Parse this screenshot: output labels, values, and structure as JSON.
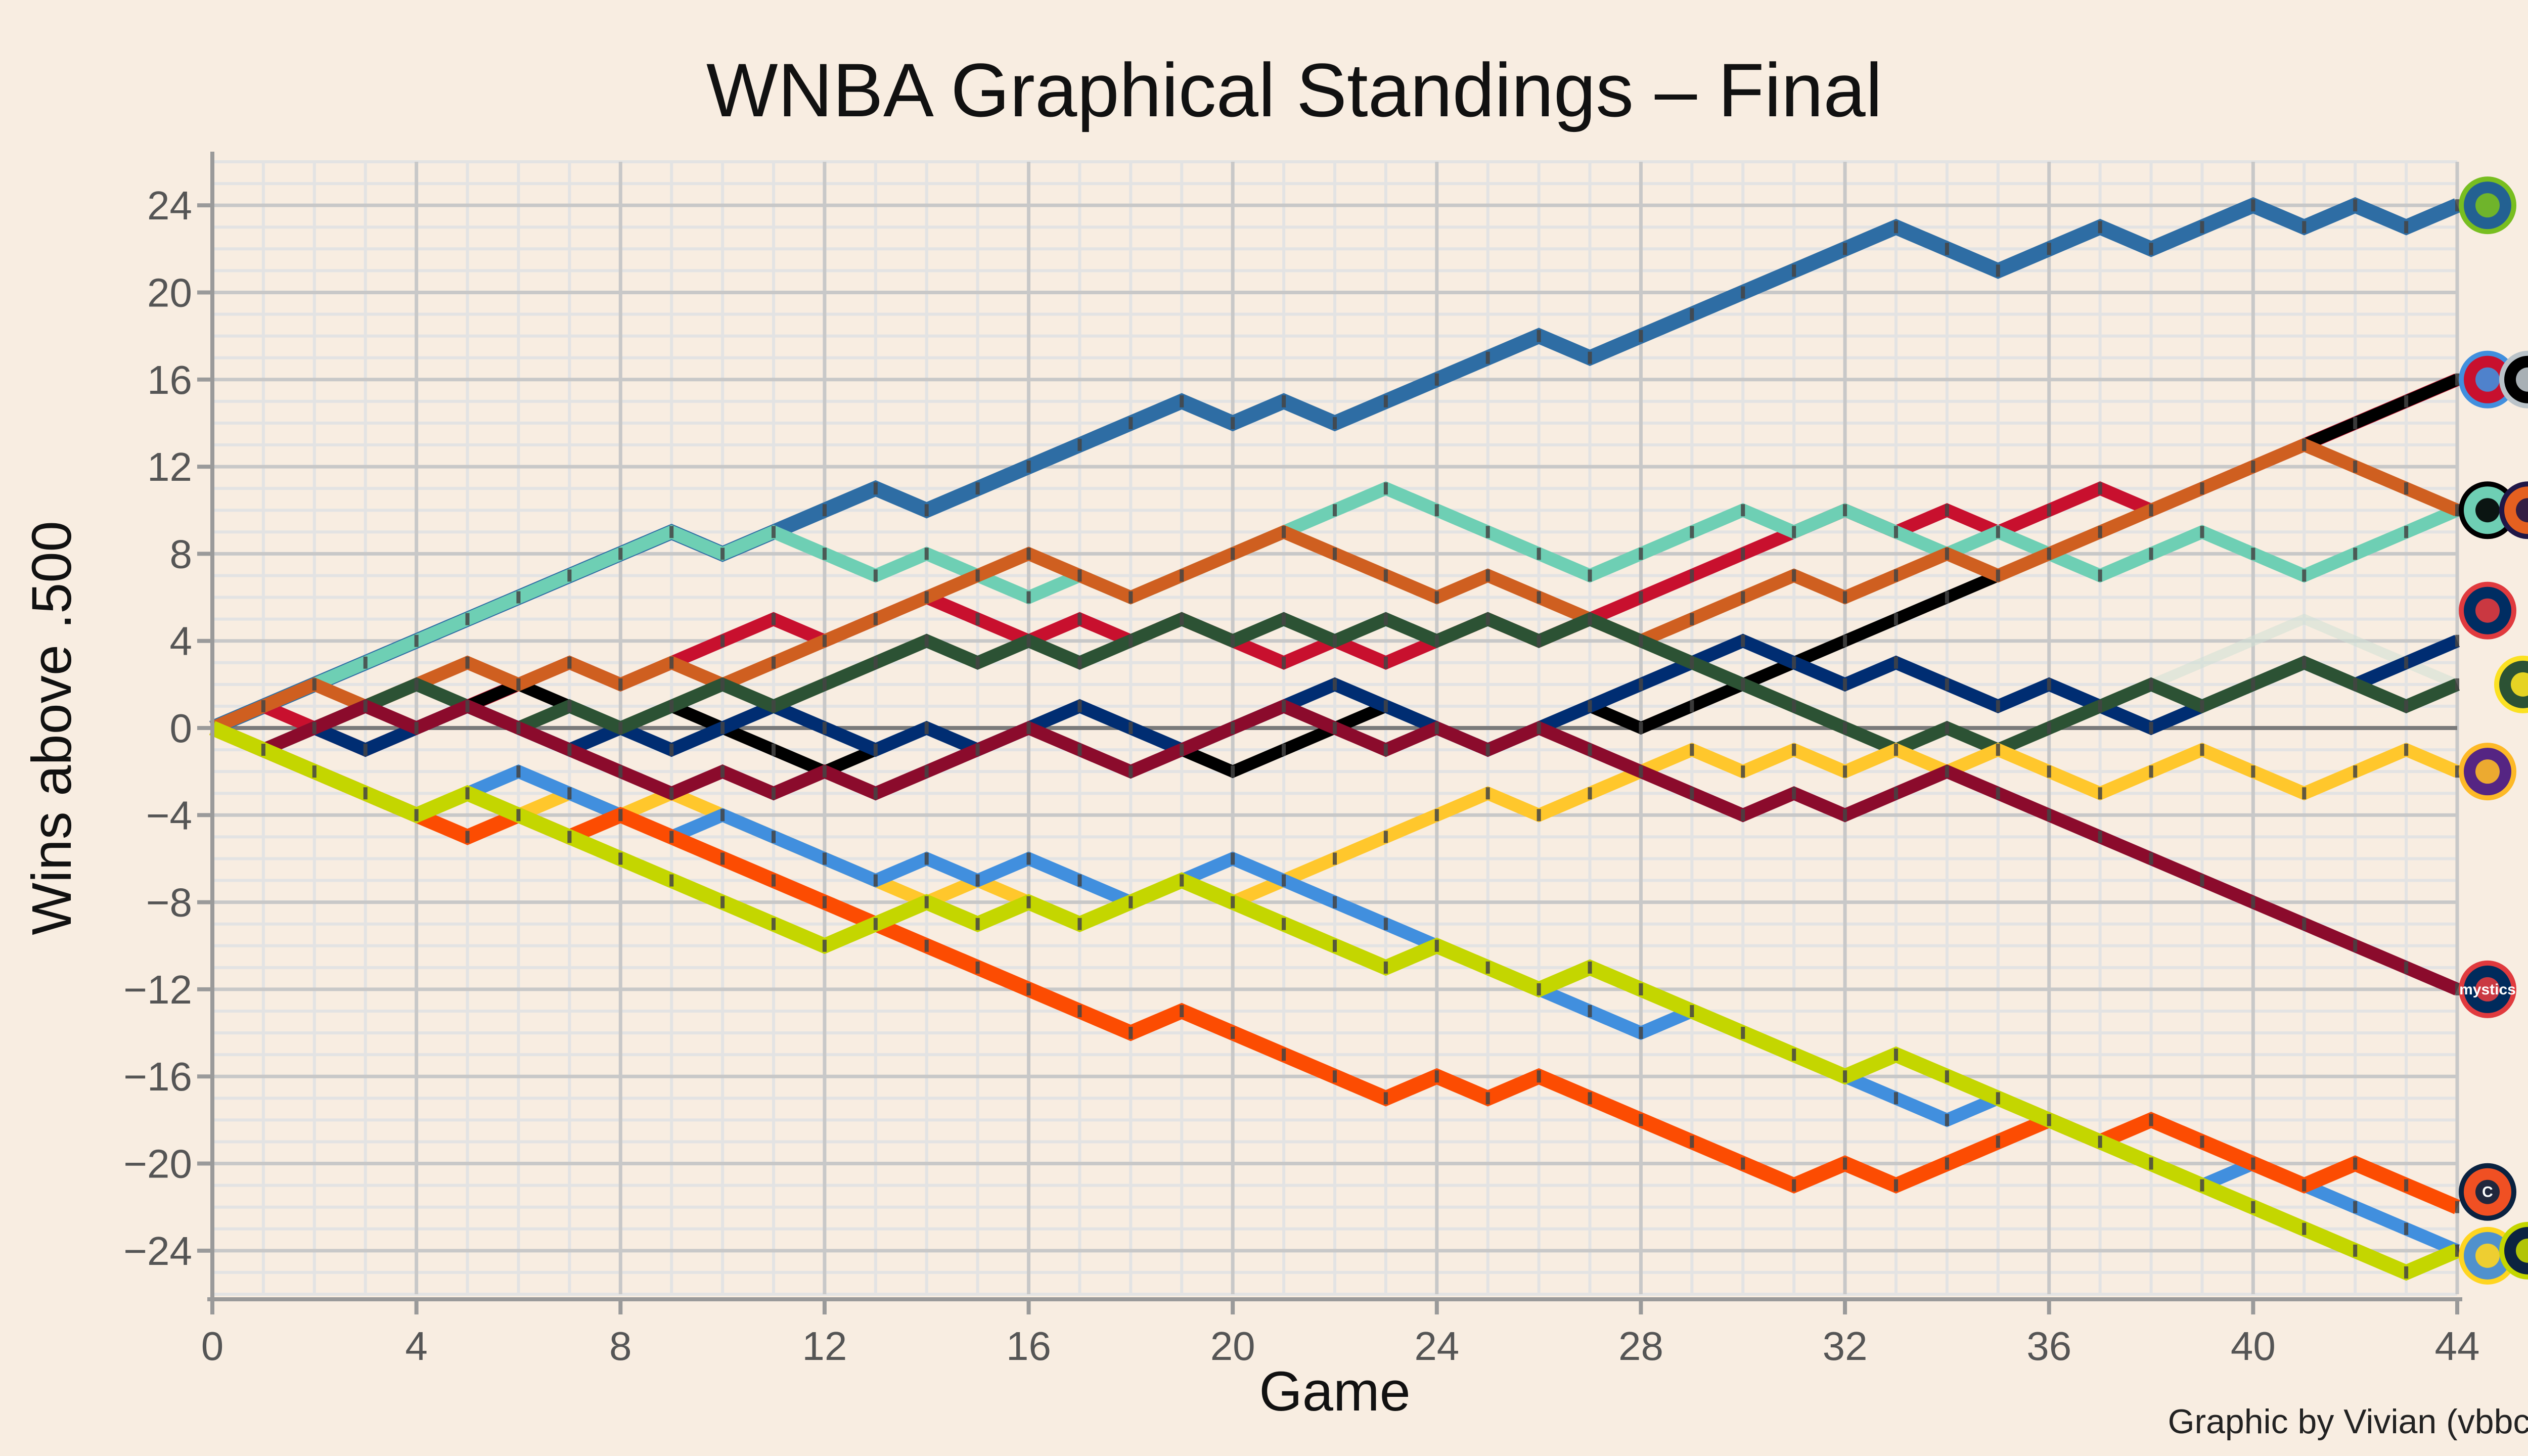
{
  "chart_data": {
    "type": "line",
    "title": "WNBA Graphical Standings – Final",
    "xlabel": "Game",
    "ylabel": "Wins above .500",
    "credit": "Graphic by Vivian (vbbcla)",
    "xlim": [
      0,
      44
    ],
    "ylim": [
      -26,
      26
    ],
    "xticks": [
      0,
      4,
      8,
      12,
      16,
      20,
      24,
      28,
      32,
      36,
      40,
      44
    ],
    "yticks": [
      24,
      20,
      16,
      12,
      8,
      4,
      0,
      -4,
      -8,
      -12,
      -16,
      -20,
      -24
    ],
    "grid": true,
    "series": [
      {
        "team": "minnesota",
        "color": "#2e6da4",
        "width": 30,
        "values": [
          0,
          1,
          2,
          3,
          4,
          5,
          6,
          7,
          8,
          9,
          8,
          9,
          10,
          11,
          10,
          11,
          12,
          13,
          14,
          15,
          14,
          15,
          14,
          15,
          16,
          17,
          18,
          17,
          18,
          19,
          20,
          21,
          22,
          23,
          22,
          21,
          22,
          23,
          22,
          23,
          24,
          23,
          24,
          23,
          24
        ]
      },
      {
        "team": "atlanta",
        "color": "#c8102e",
        "width": 26,
        "values": [
          0,
          1,
          0,
          -1,
          0,
          1,
          2,
          3,
          2,
          3,
          4,
          5,
          4,
          5,
          6,
          5,
          4,
          5,
          4,
          5,
          4,
          3,
          4,
          3,
          4,
          5,
          4,
          5,
          6,
          7,
          8,
          9,
          10,
          9,
          10,
          9,
          10,
          11,
          10,
          11,
          12,
          13,
          14,
          15,
          16
        ]
      },
      {
        "team": "las-vegas",
        "color": "#000000",
        "width": 24,
        "values": [
          0,
          -1,
          0,
          1,
          2,
          1,
          2,
          1,
          0,
          1,
          0,
          -1,
          -2,
          -1,
          0,
          -1,
          0,
          -1,
          -2,
          -1,
          -2,
          -1,
          0,
          1,
          0,
          -1,
          0,
          1,
          0,
          1,
          2,
          3,
          4,
          5,
          6,
          7,
          8,
          9,
          10,
          11,
          12,
          13,
          14,
          15,
          16
        ]
      },
      {
        "team": "new-york",
        "color": "#6ecfb4",
        "width": 26,
        "values": [
          0,
          1,
          2,
          3,
          4,
          5,
          6,
          7,
          8,
          9,
          8,
          9,
          8,
          7,
          8,
          7,
          6,
          7,
          6,
          7,
          8,
          9,
          10,
          11,
          10,
          9,
          8,
          7,
          8,
          9,
          10,
          9,
          10,
          9,
          8,
          9,
          8,
          7,
          8,
          9,
          8,
          7,
          8,
          9,
          10
        ]
      },
      {
        "team": "phoenix",
        "color": "#cf5f20",
        "width": 26,
        "values": [
          0,
          1,
          2,
          1,
          2,
          3,
          2,
          3,
          2,
          3,
          2,
          3,
          4,
          5,
          6,
          7,
          8,
          7,
          6,
          7,
          8,
          9,
          8,
          7,
          6,
          7,
          6,
          5,
          4,
          5,
          6,
          7,
          6,
          7,
          8,
          7,
          8,
          9,
          10,
          11,
          12,
          13,
          12,
          11,
          10
        ]
      },
      {
        "team": "indiana",
        "color": "#002d72",
        "width": 26,
        "values": [
          0,
          -1,
          0,
          -1,
          0,
          1,
          0,
          -1,
          0,
          -1,
          0,
          1,
          0,
          -1,
          0,
          -1,
          0,
          1,
          0,
          -1,
          0,
          1,
          2,
          1,
          0,
          -1,
          0,
          1,
          2,
          3,
          4,
          3,
          2,
          3,
          2,
          1,
          2,
          1,
          0,
          1,
          2,
          3,
          2,
          3,
          4
        ]
      },
      {
        "team": "seattle",
        "color": "#2c5234",
        "width": 26,
        "values": [
          0,
          -1,
          0,
          1,
          2,
          1,
          0,
          1,
          0,
          1,
          2,
          1,
          2,
          3,
          4,
          3,
          4,
          3,
          4,
          5,
          4,
          5,
          4,
          5,
          4,
          5,
          4,
          5,
          4,
          3,
          2,
          1,
          0,
          -1,
          0,
          -1,
          0,
          1,
          2,
          1,
          2,
          3,
          2,
          1,
          2
        ]
      },
      {
        "team": "los-angeles",
        "color": "#ffc72c",
        "width": 26,
        "values": [
          0,
          -1,
          -2,
          -3,
          -4,
          -3,
          -4,
          -3,
          -4,
          -3,
          -4,
          -5,
          -6,
          -7,
          -8,
          -7,
          -8,
          -9,
          -8,
          -7,
          -8,
          -7,
          -6,
          -5,
          -4,
          -3,
          -4,
          -3,
          -2,
          -1,
          -2,
          -1,
          -2,
          -1,
          -2,
          -1,
          -2,
          -3,
          -2,
          -1,
          -2,
          -3,
          -2,
          -1,
          -2
        ]
      },
      {
        "team": "washington",
        "color": "#8b0b2c",
        "width": 26,
        "values": [
          0,
          -1,
          0,
          1,
          0,
          1,
          0,
          -1,
          -2,
          -3,
          -2,
          -3,
          -2,
          -3,
          -2,
          -1,
          0,
          -1,
          -2,
          -1,
          0,
          1,
          0,
          -1,
          0,
          -1,
          0,
          -1,
          -2,
          -3,
          -4,
          -3,
          -4,
          -3,
          -2,
          -3,
          -4,
          -5,
          -6,
          -7,
          -8,
          -9,
          -10,
          -11,
          -12
        ]
      },
      {
        "team": "chicago",
        "color": "#418fde",
        "width": 26,
        "values": [
          0,
          -1,
          -2,
          -3,
          -4,
          -3,
          -2,
          -3,
          -4,
          -5,
          -4,
          -5,
          -6,
          -7,
          -6,
          -7,
          -6,
          -7,
          -8,
          -7,
          -6,
          -7,
          -8,
          -9,
          -10,
          -11,
          -12,
          -13,
          -14,
          -13,
          -14,
          -15,
          -16,
          -17,
          -18,
          -17,
          -18,
          -19,
          -20,
          -21,
          -20,
          -21,
          -22,
          -23,
          -24
        ]
      },
      {
        "team": "connecticut",
        "color": "#fc4c02",
        "width": 30,
        "values": [
          0,
          -1,
          -2,
          -3,
          -4,
          -5,
          -4,
          -5,
          -4,
          -5,
          -6,
          -7,
          -8,
          -9,
          -10,
          -11,
          -12,
          -13,
          -14,
          -13,
          -14,
          -15,
          -16,
          -17,
          -16,
          -17,
          -16,
          -17,
          -18,
          -19,
          -20,
          -21,
          -20,
          -21,
          -20,
          -19,
          -18,
          -19,
          -18,
          -19,
          -20,
          -21,
          -20,
          -21,
          -22
        ]
      },
      {
        "team": "dallas",
        "color": "#c4d600",
        "width": 30,
        "values": [
          0,
          -1,
          -2,
          -3,
          -4,
          -3,
          -4,
          -5,
          -6,
          -7,
          -8,
          -9,
          -10,
          -9,
          -8,
          -9,
          -8,
          -9,
          -8,
          -7,
          -8,
          -9,
          -10,
          -11,
          -10,
          -11,
          -12,
          -11,
          -12,
          -13,
          -14,
          -15,
          -16,
          -15,
          -16,
          -17,
          -18,
          -19,
          -20,
          -21,
          -22,
          -23,
          -24,
          -25,
          -24
        ]
      }
    ],
    "bands": [
      {
        "color": "#e8c9b3",
        "values": [
          0,
          1,
          2,
          1,
          2,
          3,
          2,
          3,
          2,
          3,
          4,
          5,
          4,
          5,
          6,
          7,
          8,
          7,
          6,
          7,
          8,
          9,
          8,
          7,
          6,
          7,
          6,
          5,
          6,
          7,
          8,
          9,
          10,
          9,
          10,
          9,
          10,
          11,
          10,
          11,
          12,
          13,
          14,
          15,
          16
        ]
      },
      {
        "color": "#cfe0d6",
        "values": [
          0,
          -1,
          0,
          -1,
          0,
          1,
          0,
          1,
          0,
          1,
          2,
          1,
          2,
          3,
          4,
          3,
          4,
          3,
          4,
          5,
          4,
          5,
          4,
          5,
          4,
          5,
          4,
          5,
          4,
          3,
          2,
          3,
          2,
          3,
          2,
          1,
          2,
          1,
          2,
          3,
          4,
          5,
          4,
          3,
          2
        ]
      },
      {
        "color": "#e9c2bb",
        "values": [
          0,
          -1,
          -2,
          -3,
          -4,
          -5,
          -4,
          -5,
          -4,
          -5,
          -6,
          -7,
          -8,
          -9,
          -8,
          -9,
          -8,
          -9,
          -8,
          -7,
          -8,
          -9,
          -10,
          -11,
          -10,
          -11,
          -12,
          -11,
          -12,
          -13,
          -14,
          -15,
          -16,
          -15,
          -16,
          -17,
          -18,
          -19,
          -18,
          -19,
          -20,
          -21,
          -20,
          -21,
          -22
        ]
      }
    ],
    "end_logos": [
      {
        "team": "minnesota",
        "y": 24,
        "color": "#236192",
        "accent": "#78be20"
      },
      {
        "team": "atlanta",
        "y": 16,
        "color": "#c8102e",
        "accent": "#418fde"
      },
      {
        "team": "las-vegas",
        "y": 16,
        "color": "#000000",
        "accent": "#bac3c9"
      },
      {
        "team": "new-york",
        "y": 10,
        "color": "#6ecfb4",
        "accent": "#000000"
      },
      {
        "team": "phoenix",
        "y": 10,
        "color": "#e56020",
        "accent": "#201747"
      },
      {
        "team": "indiana",
        "y": 4,
        "color": "#002d62",
        "accent": "#e03a3e"
      },
      {
        "team": "seattle",
        "y": 2,
        "color": "#2c5234",
        "accent": "#fbe122"
      },
      {
        "team": "los-angeles",
        "y": -2,
        "color": "#552583",
        "accent": "#fdb927"
      },
      {
        "team": "washington",
        "y": -12,
        "color": "#002b5c",
        "accent": "#e03a3e",
        "label": "mystics"
      },
      {
        "team": "connecticut",
        "y": -22,
        "color": "#f05023",
        "accent": "#0a2240",
        "label": "C"
      },
      {
        "team": "chicago",
        "y": -24,
        "color": "#5091cd",
        "accent": "#ffd520"
      },
      {
        "team": "dallas",
        "y": -24,
        "color": "#0c2340",
        "accent": "#c4d600"
      }
    ]
  }
}
